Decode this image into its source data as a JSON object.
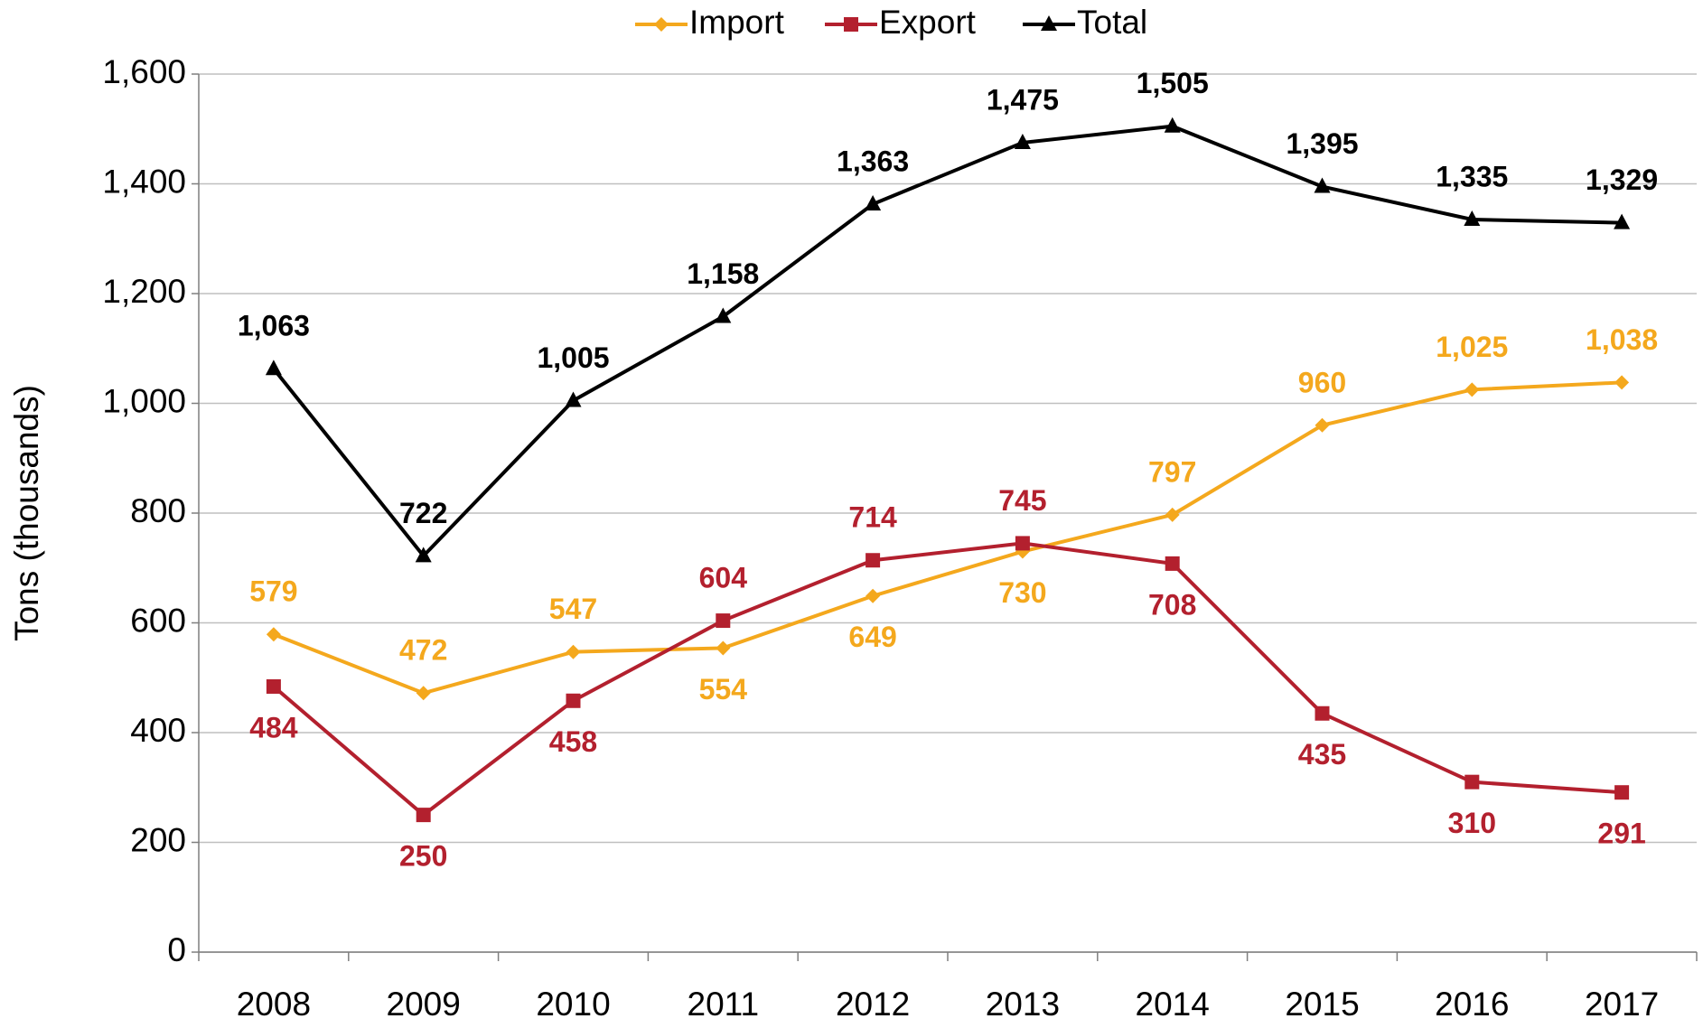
{
  "chart_data": {
    "type": "line",
    "ylabel": "Tons (thousands)",
    "categories": [
      "2008",
      "2009",
      "2010",
      "2011",
      "2012",
      "2013",
      "2014",
      "2015",
      "2016",
      "2017"
    ],
    "series": [
      {
        "name": "Import",
        "color": "#f4a81d",
        "marker": "diamond",
        "values": [
          579,
          472,
          547,
          554,
          649,
          730,
          797,
          960,
          1025,
          1038
        ],
        "value_labels": [
          "579",
          "472",
          "547",
          "554",
          "649",
          "730",
          "797",
          "960",
          "1,025",
          "1,038"
        ]
      },
      {
        "name": "Export",
        "color": "#b3202e",
        "marker": "square",
        "values": [
          484,
          250,
          458,
          604,
          714,
          745,
          708,
          435,
          310,
          291
        ],
        "value_labels": [
          "484",
          "250",
          "458",
          "604",
          "714",
          "745",
          "708",
          "435",
          "310",
          "291"
        ]
      },
      {
        "name": "Total",
        "color": "#000000",
        "marker": "triangle",
        "values": [
          1063,
          722,
          1005,
          1158,
          1363,
          1475,
          1505,
          1395,
          1335,
          1329
        ],
        "value_labels": [
          "1,063",
          "722",
          "1,005",
          "1,158",
          "1,363",
          "1,475",
          "1,505",
          "1,395",
          "1,335",
          "1,329"
        ]
      }
    ],
    "ylim": [
      0,
      1600
    ],
    "yticks": [
      0,
      200,
      400,
      600,
      800,
      {
        "value": 1000,
        "label": "1,000"
      },
      {
        "value": 1200,
        "label": "1,200"
      },
      {
        "value": 1400,
        "label": "1,400"
      },
      {
        "value": 1600,
        "label": "1,600"
      }
    ],
    "grid": true,
    "legend": "top"
  }
}
